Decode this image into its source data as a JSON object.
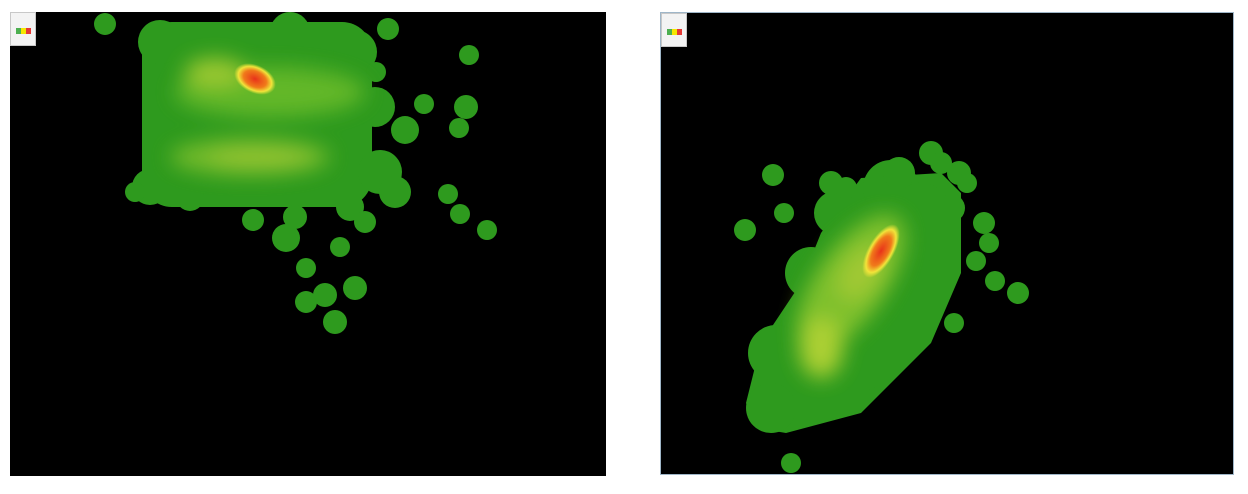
{
  "heatmaps": [
    {
      "name": "left",
      "legend_colors": [
        "#4caf50",
        "#f5e800",
        "#e53935"
      ]
    },
    {
      "name": "right",
      "legend_colors": [
        "#4caf50",
        "#f5e800",
        "#e53935"
      ]
    }
  ],
  "colors": {
    "background": "#000000",
    "low": "#2e9a1e",
    "mid": "#d6e23a",
    "high": "#e8321a"
  }
}
